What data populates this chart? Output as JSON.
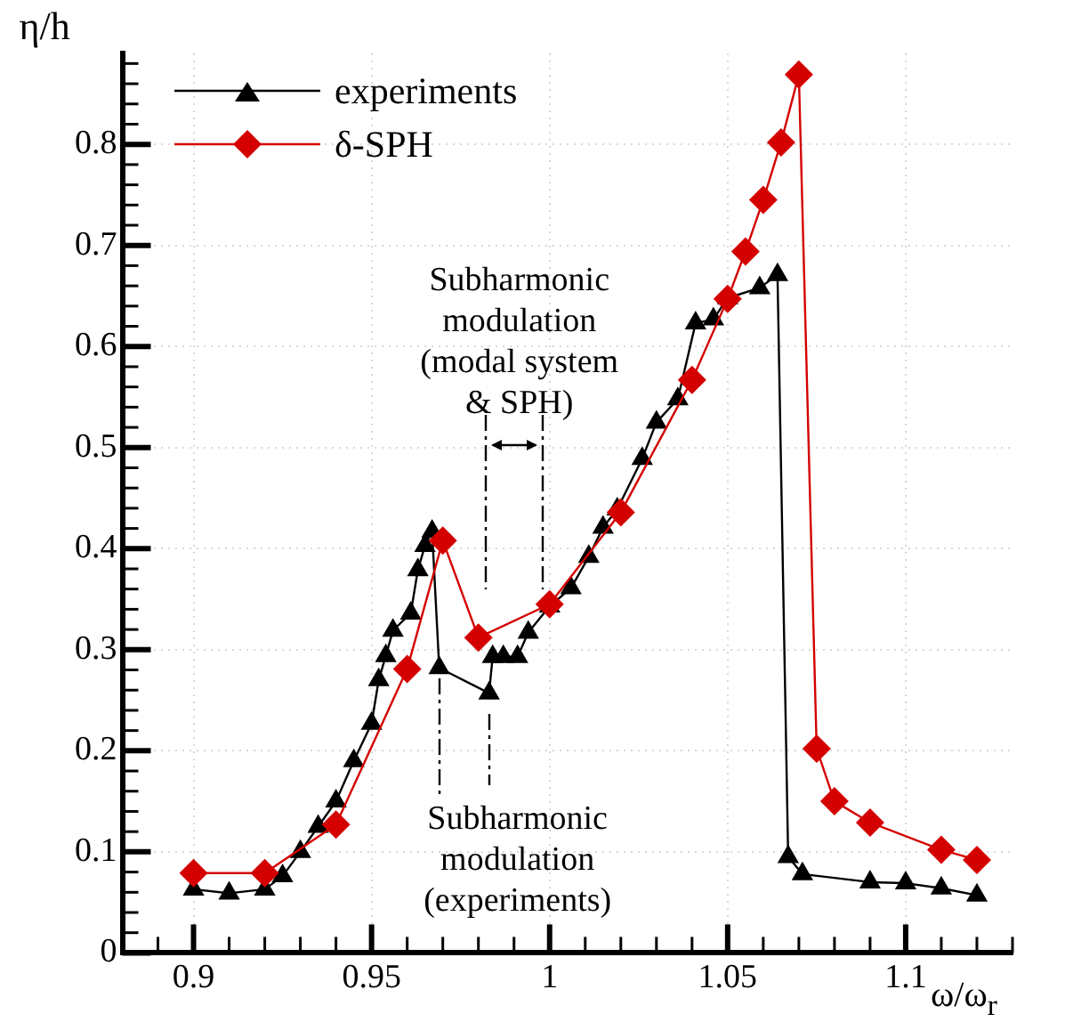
{
  "chart_data": {
    "type": "line",
    "ylabel": "η/h",
    "xlabel": "ω/ω$_{r}$",
    "xlim": [
      0.88,
      1.13
    ],
    "ylim": [
      0,
      0.89
    ],
    "xticks": [
      {
        "value": 0.89,
        "label": null
      },
      0.9,
      {
        "value": 0.91,
        "label": null
      },
      {
        "value": 0.92,
        "label": null
      },
      {
        "value": 0.93,
        "label": null
      },
      {
        "value": 0.94,
        "label": null
      },
      0.95,
      {
        "value": 0.96,
        "label": null
      },
      {
        "value": 0.97,
        "label": null
      },
      {
        "value": 0.98,
        "label": null
      },
      {
        "value": 0.99,
        "label": null
      },
      1,
      {
        "value": 1.01,
        "label": null
      },
      {
        "value": 1.02,
        "label": null
      },
      {
        "value": 1.03,
        "label": null
      },
      {
        "value": 1.04,
        "label": null
      },
      1.05,
      {
        "value": 1.06,
        "label": null
      },
      {
        "value": 1.07,
        "label": null
      },
      {
        "value": 1.08,
        "label": null
      },
      {
        "value": 1.09,
        "label": null
      },
      1.1,
      {
        "value": 1.11,
        "label": null
      },
      {
        "value": 1.12,
        "label": null
      },
      {
        "value": 1.13,
        "label": null
      }
    ],
    "yticks": [
      0,
      {
        "value": 0.02,
        "label": null
      },
      {
        "value": 0.04,
        "label": null
      },
      {
        "value": 0.06,
        "label": null
      },
      {
        "value": 0.08,
        "label": null
      },
      0.1,
      {
        "value": 0.12,
        "label": null
      },
      {
        "value": 0.14,
        "label": null
      },
      {
        "value": 0.16,
        "label": null
      },
      {
        "value": 0.18,
        "label": null
      },
      0.2,
      {
        "value": 0.22,
        "label": null
      },
      {
        "value": 0.24,
        "label": null
      },
      {
        "value": 0.26,
        "label": null
      },
      {
        "value": 0.28,
        "label": null
      },
      0.3,
      {
        "value": 0.32,
        "label": null
      },
      {
        "value": 0.34,
        "label": null
      },
      {
        "value": 0.36,
        "label": null
      },
      {
        "value": 0.38,
        "label": null
      },
      0.4,
      {
        "value": 0.42,
        "label": null
      },
      {
        "value": 0.44,
        "label": null
      },
      {
        "value": 0.46,
        "label": null
      },
      {
        "value": 0.48,
        "label": null
      },
      0.5,
      {
        "value": 0.52,
        "label": null
      },
      {
        "value": 0.54,
        "label": null
      },
      {
        "value": 0.56,
        "label": null
      },
      {
        "value": 0.58,
        "label": null
      },
      0.6,
      {
        "value": 0.62,
        "label": null
      },
      {
        "value": 0.64,
        "label": null
      },
      {
        "value": 0.66,
        "label": null
      },
      {
        "value": 0.68,
        "label": null
      },
      0.7,
      {
        "value": 0.72,
        "label": null
      },
      {
        "value": 0.74,
        "label": null
      },
      {
        "value": 0.76,
        "label": null
      },
      {
        "value": 0.78,
        "label": null
      },
      0.8,
      {
        "value": 0.82,
        "label": null
      },
      {
        "value": 0.84,
        "label": null
      },
      {
        "value": 0.86,
        "label": null
      },
      {
        "value": 0.88,
        "label": null
      }
    ],
    "grid": true,
    "legend": "top left",
    "line_style": "solid",
    "series": [
      {
        "name": "experiments",
        "color": "#000000",
        "marker": "triangle",
        "x": [
          0.9,
          0.91,
          0.92,
          0.925,
          0.93,
          0.935,
          0.94,
          0.945,
          0.95,
          0.952,
          0.954,
          0.956,
          0.961,
          0.963,
          0.965,
          0.967,
          0.969,
          0.983,
          0.984,
          0.987,
          0.991,
          0.994,
          1.0,
          1.006,
          1.011,
          1.015,
          1.019,
          1.026,
          1.03,
          1.036,
          1.041,
          1.046,
          1.05,
          1.059,
          1.064,
          1.067,
          1.071,
          1.09,
          1.1,
          1.11,
          1.12
        ],
        "values": [
          0.063,
          0.059,
          0.063,
          0.076,
          0.1,
          0.125,
          0.15,
          0.19,
          0.227,
          0.27,
          0.294,
          0.319,
          0.336,
          0.379,
          0.403,
          0.417,
          0.282,
          0.257,
          0.293,
          0.293,
          0.293,
          0.317,
          0.343,
          0.361,
          0.392,
          0.421,
          0.439,
          0.489,
          0.525,
          0.548,
          0.623,
          0.627,
          0.648,
          0.658,
          0.671,
          0.095,
          0.078,
          0.07,
          0.069,
          0.064,
          0.057
        ]
      },
      {
        "name": "δ-SPH",
        "color": "#d40000",
        "marker": "diamond",
        "x": [
          0.9,
          0.92,
          0.94,
          0.96,
          0.97,
          0.98,
          1.0,
          1.02,
          1.04,
          1.05,
          1.055,
          1.06,
          1.065,
          1.07,
          1.075,
          1.08,
          1.09,
          1.11,
          1.12
        ],
        "values": [
          0.079,
          0.079,
          0.127,
          0.281,
          0.408,
          0.312,
          0.345,
          0.436,
          0.567,
          0.647,
          0.694,
          0.745,
          0.802,
          0.869,
          0.202,
          0.15,
          0.129,
          0.102,
          0.092
        ]
      }
    ],
    "annotations": [
      {
        "text": "Subharmonic\nmodulation\n(modal system\n& SPH)",
        "x": 1.0,
        "y": 0.345
      },
      {
        "text": "Subharmonic\nmodulation\n(experiments)",
        "x": 0.969,
        "y": 0.282
      }
    ]
  }
}
